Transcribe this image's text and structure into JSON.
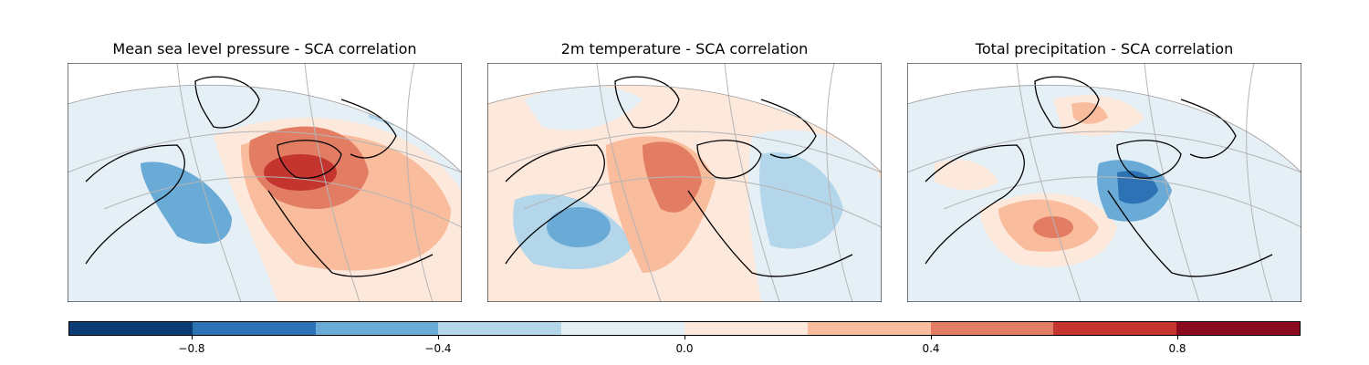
{
  "figure": {
    "panels": [
      {
        "title": "Mean sea level pressure - SCA correlation"
      },
      {
        "title": "2m temperature - SCA correlation"
      },
      {
        "title": "Total precipitation - SCA correlation"
      }
    ],
    "colorbar": {
      "colors": [
        "#0b3b74",
        "#2d72b5",
        "#6aaad6",
        "#b3d6ea",
        "#e5eff6",
        "#fde8dc",
        "#f9bc9c",
        "#e27c63",
        "#c43530",
        "#8a0b20"
      ],
      "ticks": [
        {
          "value": -0.8,
          "label": "−0.8"
        },
        {
          "value": -0.4,
          "label": "−0.4"
        },
        {
          "value": 0.0,
          "label": "0.0"
        },
        {
          "value": 0.4,
          "label": "0.4"
        },
        {
          "value": 0.8,
          "label": "0.8"
        }
      ],
      "range": [
        -1.0,
        1.0
      ]
    }
  }
}
